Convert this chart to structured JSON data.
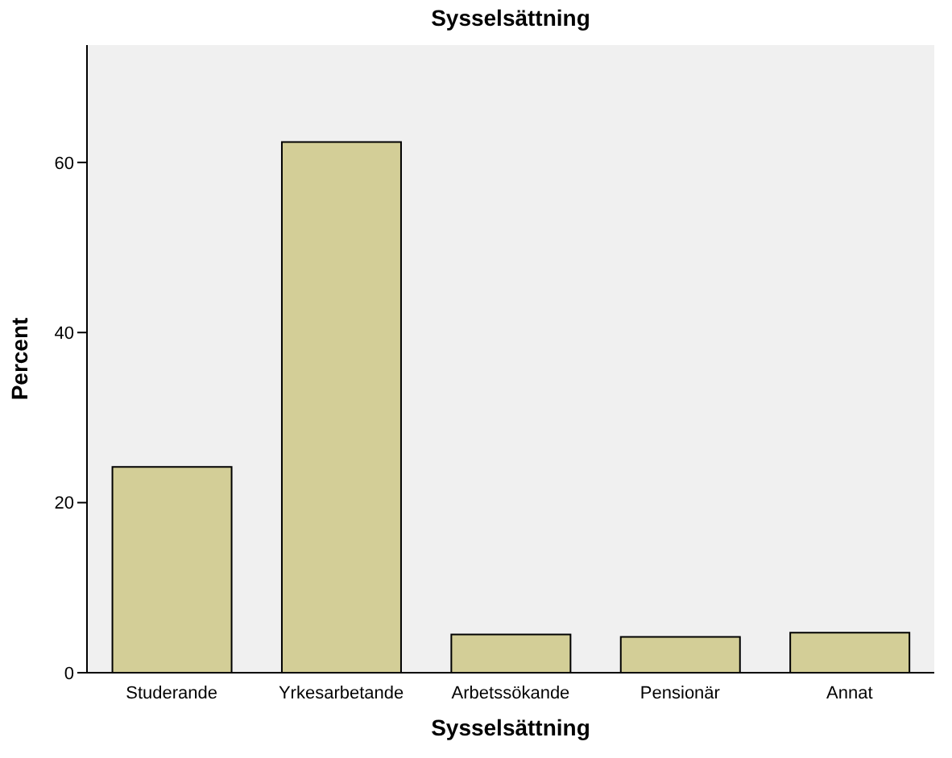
{
  "chart_data": {
    "type": "bar",
    "title": "Sysselsättning",
    "xlabel": "Sysselsättning",
    "ylabel": "Percent",
    "categories": [
      "Studerande",
      "Yrkesarbetande",
      "Arbetssökande",
      "Pensionär",
      "Annat"
    ],
    "values": [
      24.2,
      62.4,
      4.5,
      4.2,
      4.7
    ],
    "color": "#d3ce97",
    "ylim": [
      0,
      73.8
    ],
    "yticks": [
      0,
      20,
      40,
      60
    ],
    "grid": false
  }
}
